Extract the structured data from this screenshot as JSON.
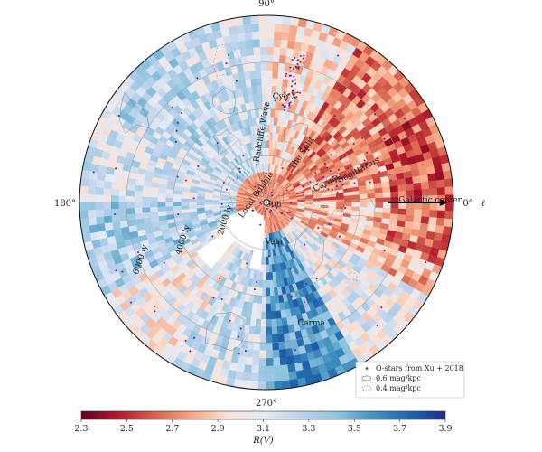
{
  "chart_data": {
    "type": "heatmap",
    "projection": "polar galactic plane, Sun at center",
    "angular_axis": {
      "ticks": [
        {
          "label": "90°",
          "deg": 90
        },
        {
          "label": "180°",
          "deg": 180
        },
        {
          "label": "270°",
          "deg": 270
        },
        {
          "label": "0°",
          "deg": 0
        }
      ],
      "symbol": "ℓ"
    },
    "radial_axis": {
      "max_ly": 8000,
      "rings": [
        {
          "label": "2000 ly",
          "ly": 2000
        },
        {
          "label": "4000 ly",
          "ly": 4000
        },
        {
          "label": "6000 ly",
          "ly": 6000
        }
      ]
    },
    "colorbar": {
      "label": "R(V)",
      "min": 2.3,
      "max": 3.9,
      "ticks": [
        "2.3",
        "2.5",
        "2.7",
        "2.9",
        "3.1",
        "3.3",
        "3.5",
        "3.7",
        "3.9"
      ],
      "colors": [
        "#67001f",
        "#b2182b",
        "#d6604d",
        "#f4a582",
        "#fbe0d3",
        "#e6eaf2",
        "#bcd2ec",
        "#92c5de",
        "#4393c3",
        "#2166ac",
        "#1a2f8a"
      ]
    },
    "sectors": [
      {
        "l_from": 0,
        "l_to": 30,
        "mean_rv": 2.75
      },
      {
        "l_from": 30,
        "l_to": 60,
        "mean_rv": 2.7
      },
      {
        "l_from": 60,
        "l_to": 90,
        "mean_rv": 2.95
      },
      {
        "l_from": 90,
        "l_to": 120,
        "mean_rv": 3.2
      },
      {
        "l_from": 120,
        "l_to": 150,
        "mean_rv": 3.25
      },
      {
        "l_from": 150,
        "l_to": 180,
        "mean_rv": 3.15
      },
      {
        "l_from": 180,
        "l_to": 210,
        "mean_rv": 3.3
      },
      {
        "l_from": 210,
        "l_to": 240,
        "mean_rv": 3.05
      },
      {
        "l_from": 240,
        "l_to": 270,
        "mean_rv": 3.2
      },
      {
        "l_from": 270,
        "l_to": 300,
        "mean_rv": 3.55
      },
      {
        "l_from": 300,
        "l_to": 330,
        "mean_rv": 3.1
      },
      {
        "l_from": 330,
        "l_to": 360,
        "mean_rv": 2.85
      }
    ],
    "annotations": [
      {
        "text": "Cyg X",
        "l": 80,
        "d_ly": 4500
      },
      {
        "text": "Radcliffe Wave",
        "l": 92,
        "d_ly": 3000
      },
      {
        "text": "The Split",
        "l": 52,
        "d_ly": 2600
      },
      {
        "text": "Sagittarius",
        "l": 18,
        "d_ly": 4200
      },
      {
        "text": "Carina",
        "l": 16,
        "d_ly": 2700
      },
      {
        "text": "Galactic center",
        "l": 0,
        "d_ly": 7000
      },
      {
        "text": "Sun",
        "l": 330,
        "d_ly": 350
      },
      {
        "text": "Local Bubble",
        "l": 145,
        "d_ly": 450
      },
      {
        "text": "Vela",
        "l": 280,
        "d_ly": 1800
      },
      {
        "text": "Carma",
        "l": 290,
        "d_ly": 5600
      }
    ],
    "legend": {
      "placement": "bottom-right",
      "entries": [
        {
          "label": "O-stars from Xu + 2018",
          "kind": "marker"
        },
        {
          "label": "0.6 mag/kpc",
          "kind": "contour"
        },
        {
          "label": "0.4 mag/kpc",
          "kind": "contour"
        }
      ]
    }
  }
}
